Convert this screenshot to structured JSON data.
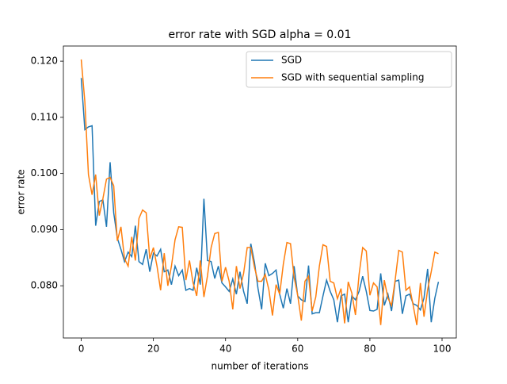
{
  "chart_data": {
    "type": "line",
    "title": "error rate with SGD alpha = 0.01",
    "x_label": "number of iterations",
    "y_label": "error rate",
    "x": [
      0,
      1,
      2,
      3,
      4,
      5,
      6,
      7,
      8,
      9,
      10,
      11,
      12,
      13,
      14,
      15,
      16,
      17,
      18,
      19,
      20,
      21,
      22,
      23,
      24,
      25,
      26,
      27,
      28,
      29,
      30,
      31,
      32,
      33,
      34,
      35,
      36,
      37,
      38,
      39,
      40,
      41,
      42,
      43,
      44,
      45,
      46,
      47,
      48,
      49,
      50,
      51,
      52,
      53,
      54,
      55,
      56,
      57,
      58,
      59,
      60,
      61,
      62,
      63,
      64,
      65,
      66,
      67,
      68,
      69,
      70,
      71,
      72,
      73,
      74,
      75,
      76,
      77,
      78,
      79,
      80,
      81,
      82,
      83,
      84,
      85,
      86,
      87,
      88,
      89,
      90,
      91,
      92,
      93,
      94,
      95,
      96,
      97,
      98,
      99
    ],
    "series": [
      {
        "name": "SGD",
        "color": "#1f77b4",
        "values": [
          0.117,
          0.1078,
          0.1083,
          0.1085,
          0.0907,
          0.095,
          0.0953,
          0.0905,
          0.102,
          0.093,
          0.0885,
          0.0865,
          0.0843,
          0.086,
          0.0852,
          0.0907,
          0.0843,
          0.0838,
          0.0865,
          0.0825,
          0.0858,
          0.0853,
          0.0865,
          0.0825,
          0.0828,
          0.0802,
          0.0835,
          0.0818,
          0.0828,
          0.0792,
          0.0795,
          0.0792,
          0.0832,
          0.0802,
          0.0955,
          0.0845,
          0.0843,
          0.0813,
          0.0835,
          0.0805,
          0.0798,
          0.079,
          0.0812,
          0.0785,
          0.0825,
          0.079,
          0.0768,
          0.0875,
          0.0842,
          0.0795,
          0.0758,
          0.084,
          0.0818,
          0.0822,
          0.0828,
          0.0785,
          0.076,
          0.0795,
          0.0768,
          0.0835,
          0.0782,
          0.0775,
          0.0772,
          0.0836,
          0.075,
          0.0752,
          0.0752,
          0.0782,
          0.081,
          0.079,
          0.0775,
          0.0735,
          0.0782,
          0.0785,
          0.0735,
          0.0782,
          0.0775,
          0.079,
          0.0817,
          0.079,
          0.0756,
          0.0755,
          0.0758,
          0.0822,
          0.0765,
          0.0785,
          0.0755,
          0.0808,
          0.081,
          0.075,
          0.0782,
          0.0785,
          0.0768,
          0.0765,
          0.0757,
          0.0778,
          0.083,
          0.0735,
          0.0778,
          0.0807
        ]
      },
      {
        "name": "SGD with sequential sampling",
        "color": "#ff7f0e",
        "values": [
          0.1203,
          0.1128,
          0.0998,
          0.0962,
          0.0998,
          0.0925,
          0.0955,
          0.099,
          0.0993,
          0.0978,
          0.088,
          0.0905,
          0.0848,
          0.0835,
          0.0887,
          0.0845,
          0.092,
          0.0935,
          0.093,
          0.0848,
          0.0868,
          0.0835,
          0.0792,
          0.0858,
          0.08,
          0.0835,
          0.0882,
          0.0905,
          0.0904,
          0.081,
          0.0845,
          0.0805,
          0.0782,
          0.0845,
          0.078,
          0.0818,
          0.0868,
          0.0893,
          0.0895,
          0.0808,
          0.0833,
          0.0808,
          0.0758,
          0.0835,
          0.0795,
          0.0822,
          0.0868,
          0.0868,
          0.0833,
          0.0808,
          0.0808,
          0.082,
          0.0793,
          0.0747,
          0.0802,
          0.0785,
          0.0838,
          0.0877,
          0.0875,
          0.0815,
          0.0783,
          0.0738,
          0.0808,
          0.0817,
          0.0755,
          0.078,
          0.0835,
          0.0873,
          0.087,
          0.0808,
          0.0805,
          0.0777,
          0.0795,
          0.0733,
          0.0807,
          0.0787,
          0.0748,
          0.082,
          0.0868,
          0.0862,
          0.0783,
          0.0805,
          0.0798,
          0.073,
          0.081,
          0.0778,
          0.0765,
          0.081,
          0.0863,
          0.086,
          0.0792,
          0.0798,
          0.0765,
          0.073,
          0.0805,
          0.0745,
          0.0793,
          0.0825,
          0.086,
          0.0857
        ]
      }
    ],
    "xlim": [
      -4.95,
      103.95
    ],
    "ylim": [
      0.0707,
      0.1227
    ],
    "xticks": [
      0,
      20,
      40,
      60,
      80,
      100
    ],
    "yticks": [
      {
        "value": 0.08,
        "label": "0.080"
      },
      {
        "value": 0.09,
        "label": "0.090"
      },
      {
        "value": 0.1,
        "label": "0.100"
      },
      {
        "value": 0.11,
        "label": "0.110"
      },
      {
        "value": 0.12,
        "label": "0.120"
      }
    ],
    "grid": false,
    "legend": "upper right"
  }
}
